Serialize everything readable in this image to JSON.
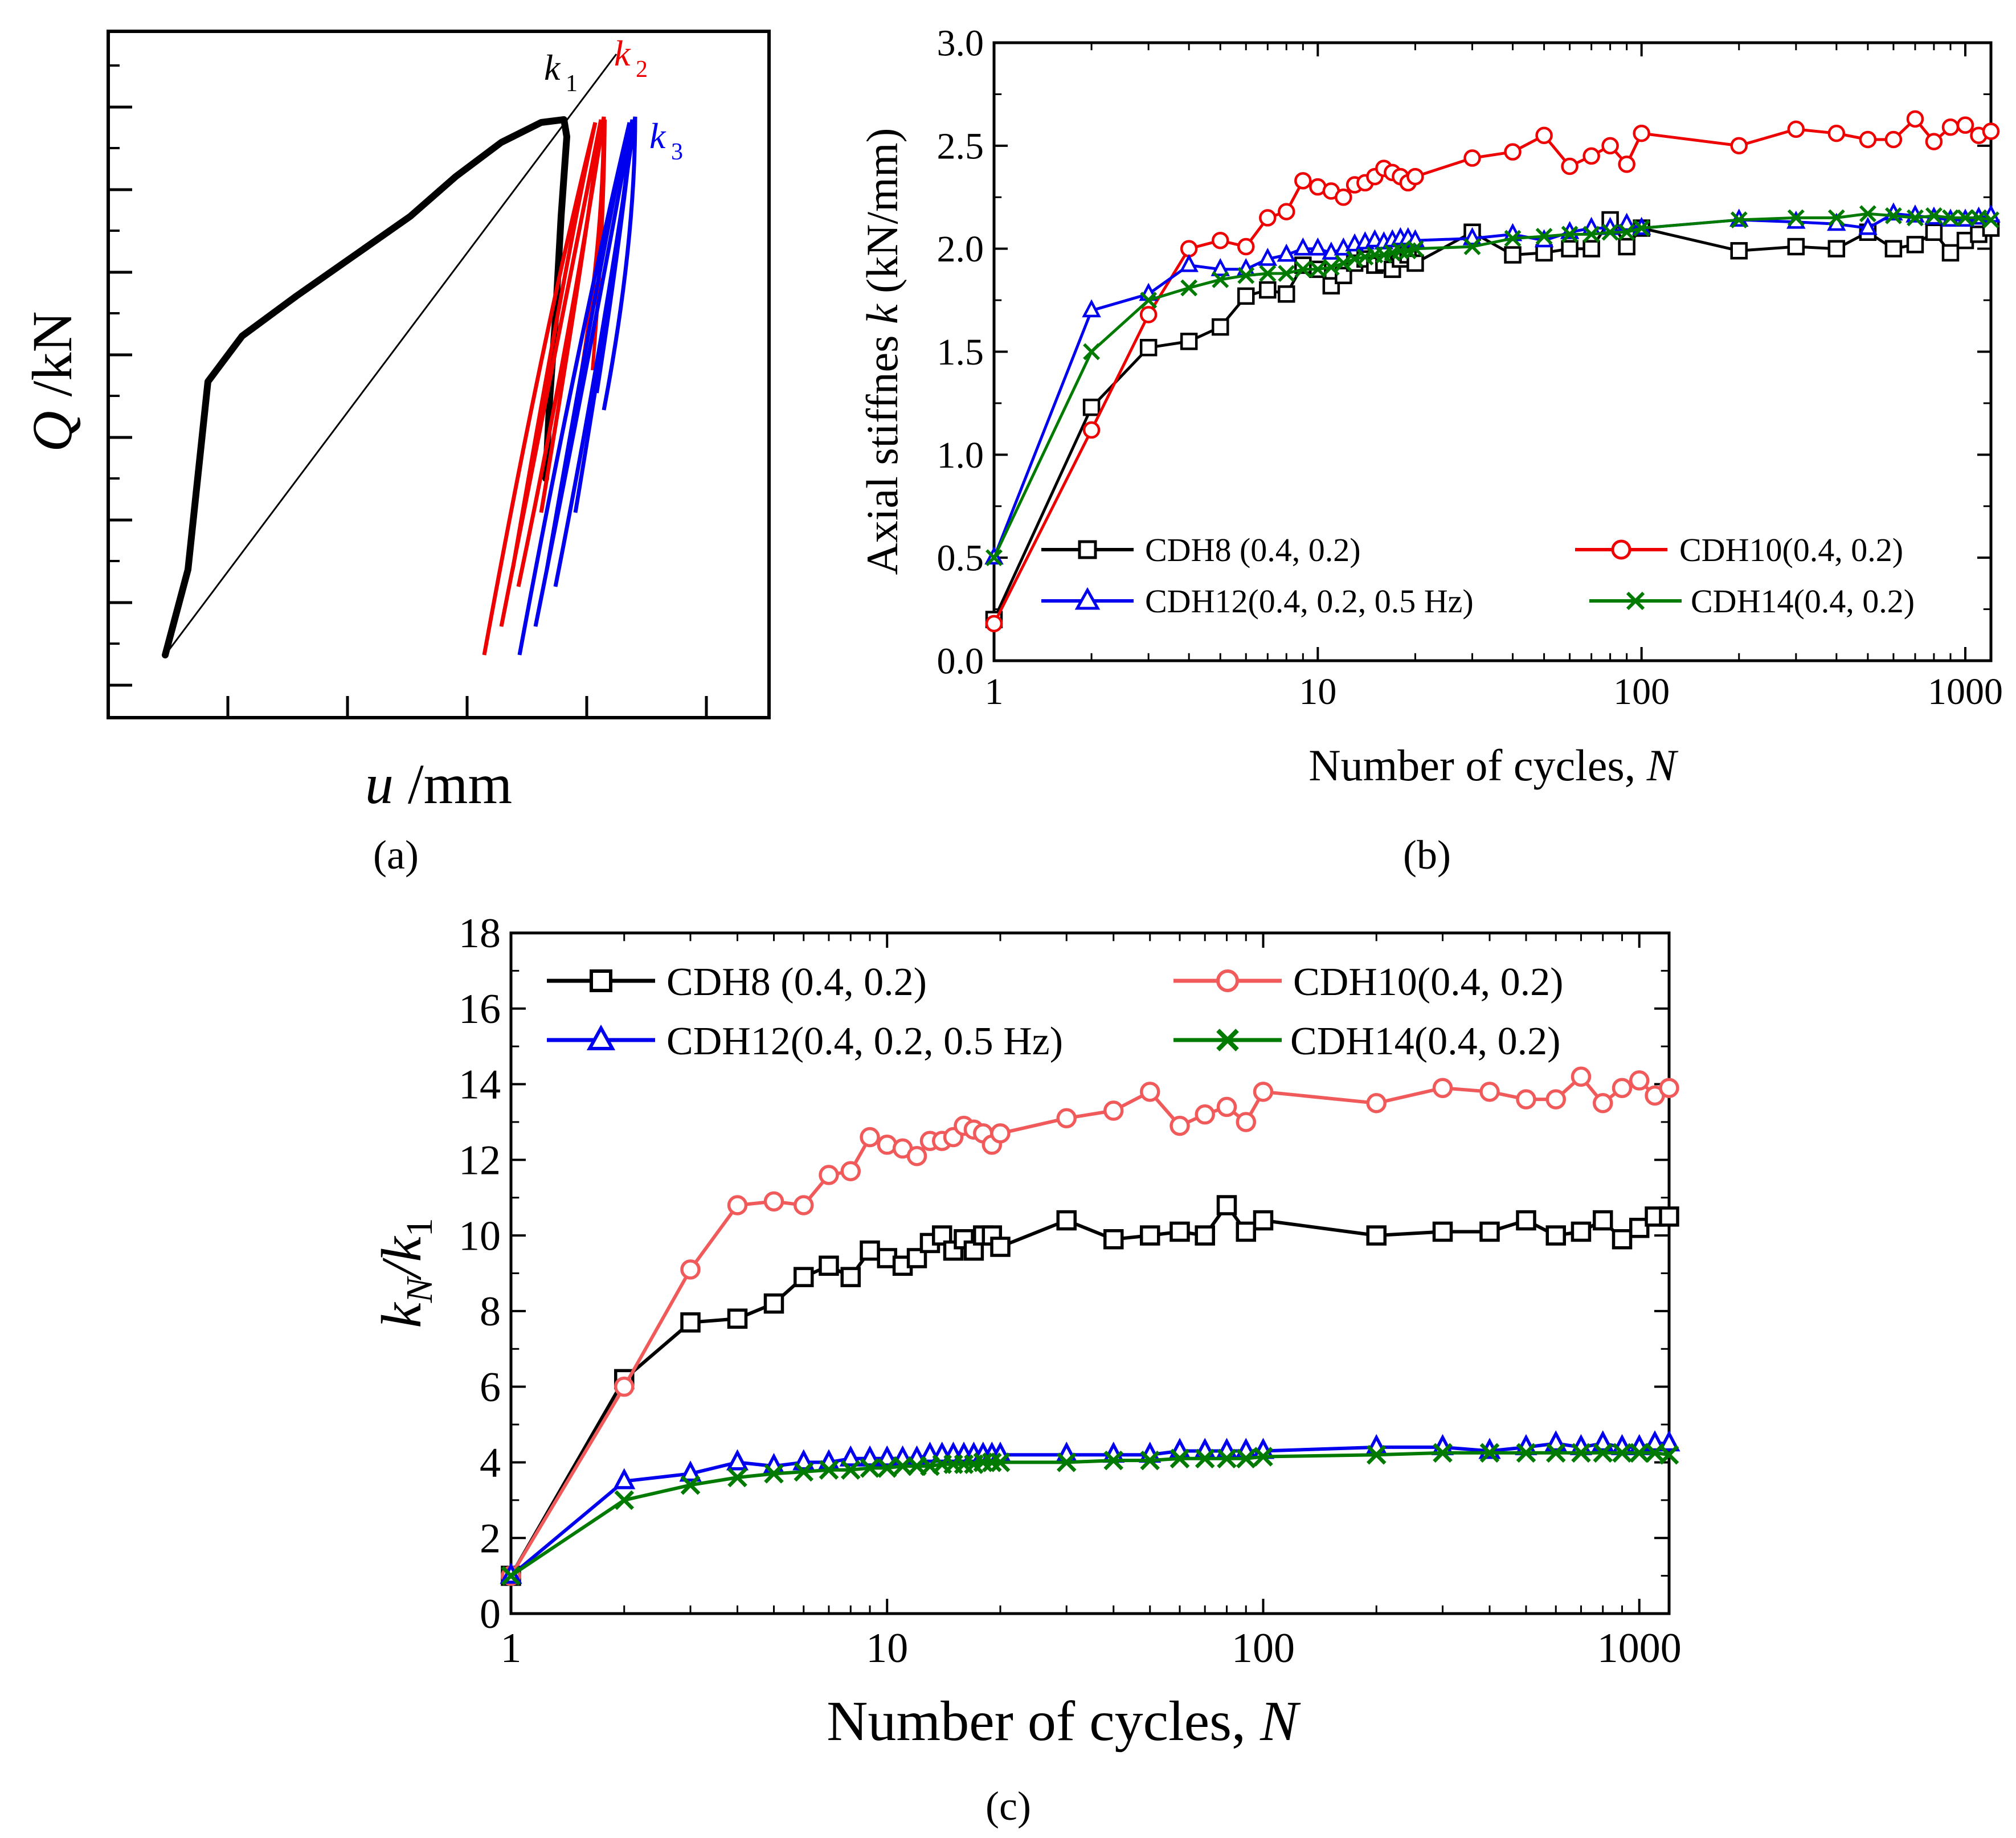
{
  "panel_labels": {
    "a": "(a)",
    "b": "(b)",
    "c": "(c)"
  },
  "colors": {
    "CDH8": "#000000",
    "CDH10": "#ee0000",
    "CDH12": "#0000ee",
    "CDH14": "#007a00",
    "CDH10_c": "#f05a5a"
  },
  "chart_data": [
    {
      "id": "a",
      "type": "line",
      "title": "",
      "xlabel_var": "u",
      "xlabel_unit": " /mm",
      "ylabel_var": "Q",
      "ylabel_unit": " /kN",
      "annotations": [
        {
          "base": "k",
          "sub": "1",
          "color": "#000000"
        },
        {
          "base": "k",
          "sub": "2",
          "color": "#ee0000"
        },
        {
          "base": "k",
          "sub": "3",
          "color": "#0000ee"
        }
      ],
      "grid": false,
      "note": "hysteresis loops, axes without tick values"
    },
    {
      "id": "b",
      "type": "line",
      "xscale": "log",
      "xlim": [
        1,
        1200
      ],
      "ylim": [
        0,
        3.0
      ],
      "xlabel": "Number of cycles, ",
      "xlabel_italic": "N",
      "ylabel": "Axial stiffnes ",
      "ylabel_italic": "k",
      "ylabel_unit": "  (kN/mm)",
      "xticks": [
        1,
        10,
        100,
        1000
      ],
      "xtick_labels": [
        "1",
        "10",
        "100",
        "1000"
      ],
      "yticks": [
        0,
        0.5,
        1.0,
        1.5,
        2.0,
        2.5,
        3.0
      ],
      "ytick_labels": [
        "0.0",
        "0.5",
        "1.0",
        "1.5",
        "2.0",
        "2.5",
        "3.0"
      ],
      "legend_position": "bottom",
      "grid": false,
      "x": [
        1,
        2,
        3,
        4,
        5,
        6,
        7,
        8,
        9,
        10,
        11,
        12,
        13,
        14,
        15,
        16,
        17,
        18,
        19,
        20,
        30,
        40,
        50,
        60,
        70,
        80,
        90,
        100,
        200,
        300,
        400,
        500,
        600,
        700,
        800,
        900,
        1000,
        1100,
        1200
      ],
      "series": [
        {
          "name": "CDH8  (0.4, 0.2)",
          "marker": "square",
          "color": "#000000",
          "values": [
            0.2,
            1.23,
            1.52,
            1.55,
            1.62,
            1.77,
            1.8,
            1.78,
            1.92,
            1.9,
            1.82,
            1.87,
            1.93,
            1.95,
            1.92,
            1.93,
            1.9,
            1.95,
            1.97,
            1.93,
            2.08,
            1.97,
            1.98,
            2.0,
            2.0,
            2.14,
            2.01,
            2.1,
            1.99,
            2.01,
            2.0,
            2.08,
            2.0,
            2.02,
            2.08,
            1.98,
            2.04,
            2.07,
            2.1
          ]
        },
        {
          "name": "CDH10(0.4, 0.2)",
          "marker": "circle",
          "color": "#ee0000",
          "values": [
            0.18,
            1.12,
            1.68,
            2.0,
            2.04,
            2.01,
            2.15,
            2.18,
            2.33,
            2.3,
            2.28,
            2.25,
            2.31,
            2.32,
            2.35,
            2.39,
            2.37,
            2.35,
            2.32,
            2.35,
            2.44,
            2.47,
            2.55,
            2.4,
            2.45,
            2.5,
            2.41,
            2.56,
            2.5,
            2.58,
            2.56,
            2.53,
            2.53,
            2.63,
            2.52,
            2.59,
            2.6,
            2.55,
            2.57
          ]
        },
        {
          "name": "CDH12(0.4, 0.2, 0.5 Hz)",
          "marker": "triangle",
          "color": "#0000ee",
          "values": [
            0.5,
            1.7,
            1.78,
            1.92,
            1.9,
            1.9,
            1.95,
            1.97,
            2.0,
            2.0,
            1.98,
            2.0,
            2.02,
            2.03,
            2.04,
            2.03,
            2.04,
            2.05,
            2.05,
            2.04,
            2.05,
            2.07,
            2.04,
            2.08,
            2.1,
            2.1,
            2.12,
            2.1,
            2.14,
            2.13,
            2.12,
            2.1,
            2.17,
            2.16,
            2.15,
            2.14,
            2.14,
            2.15,
            2.16
          ]
        },
        {
          "name": "CDH14(0.4, 0.2)",
          "marker": "x",
          "color": "#007a00",
          "values": [
            0.5,
            1.5,
            1.75,
            1.81,
            1.85,
            1.87,
            1.88,
            1.88,
            1.9,
            1.9,
            1.91,
            1.93,
            1.95,
            1.96,
            1.97,
            1.97,
            1.98,
            1.99,
            1.99,
            2.0,
            2.01,
            2.05,
            2.06,
            2.07,
            2.07,
            2.08,
            2.08,
            2.1,
            2.14,
            2.15,
            2.15,
            2.17,
            2.16,
            2.15,
            2.16,
            2.15,
            2.15,
            2.15,
            2.14
          ]
        }
      ]
    },
    {
      "id": "c",
      "type": "line",
      "xscale": "log",
      "xlim": [
        1,
        1200
      ],
      "ylim": [
        0,
        18
      ],
      "xlabel": "Number of cycles, ",
      "xlabel_italic": "N",
      "ylabel_parts": [
        "k",
        "N",
        "/k",
        "1"
      ],
      "xticks": [
        1,
        10,
        100,
        1000
      ],
      "xtick_labels": [
        "1",
        "10",
        "100",
        "1000"
      ],
      "yticks": [
        0,
        2,
        4,
        6,
        8,
        10,
        12,
        14,
        16,
        18
      ],
      "ytick_labels": [
        "0",
        "2",
        "4",
        "6",
        "8",
        "10",
        "12",
        "14",
        "16",
        "18"
      ],
      "legend_position": "top",
      "grid": false,
      "x": [
        1,
        2,
        3,
        4,
        5,
        6,
        7,
        8,
        9,
        10,
        11,
        12,
        13,
        14,
        15,
        16,
        17,
        18,
        19,
        20,
        30,
        40,
        50,
        60,
        70,
        80,
        90,
        100,
        200,
        300,
        400,
        500,
        600,
        700,
        800,
        900,
        1000,
        1100,
        1200
      ],
      "series": [
        {
          "name": "CDH8 (0.4, 0.2)",
          "marker": "square",
          "color": "#000000",
          "values": [
            1.0,
            6.2,
            7.7,
            7.8,
            8.2,
            8.9,
            9.2,
            8.9,
            9.6,
            9.4,
            9.2,
            9.4,
            9.8,
            10.0,
            9.6,
            9.9,
            9.6,
            10.0,
            10.0,
            9.7,
            10.4,
            9.9,
            10.0,
            10.1,
            10.0,
            10.8,
            10.1,
            10.4,
            10.0,
            10.1,
            10.1,
            10.4,
            10.0,
            10.1,
            10.4,
            9.9,
            10.2,
            10.5,
            10.5
          ]
        },
        {
          "name": "CDH10(0.4, 0.2)",
          "marker": "circle",
          "color": "#f05a5a",
          "values": [
            1.0,
            6.0,
            9.1,
            10.8,
            10.9,
            10.8,
            11.6,
            11.7,
            12.6,
            12.4,
            12.3,
            12.1,
            12.5,
            12.5,
            12.6,
            12.9,
            12.8,
            12.7,
            12.4,
            12.7,
            13.1,
            13.3,
            13.8,
            12.9,
            13.2,
            13.4,
            13.0,
            13.8,
            13.5,
            13.9,
            13.8,
            13.6,
            13.6,
            14.2,
            13.5,
            13.9,
            14.1,
            13.7,
            13.9
          ]
        },
        {
          "name": "CDH12(0.4, 0.2, 0.5 Hz)",
          "marker": "triangle",
          "color": "#0000ee",
          "values": [
            1.0,
            3.5,
            3.7,
            4.0,
            3.9,
            4.0,
            4.0,
            4.1,
            4.1,
            4.1,
            4.1,
            4.1,
            4.2,
            4.2,
            4.2,
            4.2,
            4.2,
            4.2,
            4.2,
            4.2,
            4.2,
            4.2,
            4.2,
            4.3,
            4.3,
            4.3,
            4.3,
            4.3,
            4.4,
            4.4,
            4.3,
            4.4,
            4.5,
            4.4,
            4.5,
            4.4,
            4.4,
            4.5,
            4.5
          ]
        },
        {
          "name": "CDH14(0.4, 0.2)",
          "marker": "x",
          "color": "#007a00",
          "values": [
            1.0,
            3.0,
            3.4,
            3.6,
            3.7,
            3.75,
            3.8,
            3.8,
            3.85,
            3.85,
            3.9,
            3.9,
            3.9,
            3.95,
            3.95,
            3.95,
            3.95,
            4.0,
            4.0,
            4.0,
            4.0,
            4.05,
            4.05,
            4.1,
            4.1,
            4.1,
            4.1,
            4.15,
            4.2,
            4.25,
            4.25,
            4.25,
            4.25,
            4.25,
            4.25,
            4.25,
            4.25,
            4.25,
            4.2
          ]
        }
      ]
    }
  ]
}
